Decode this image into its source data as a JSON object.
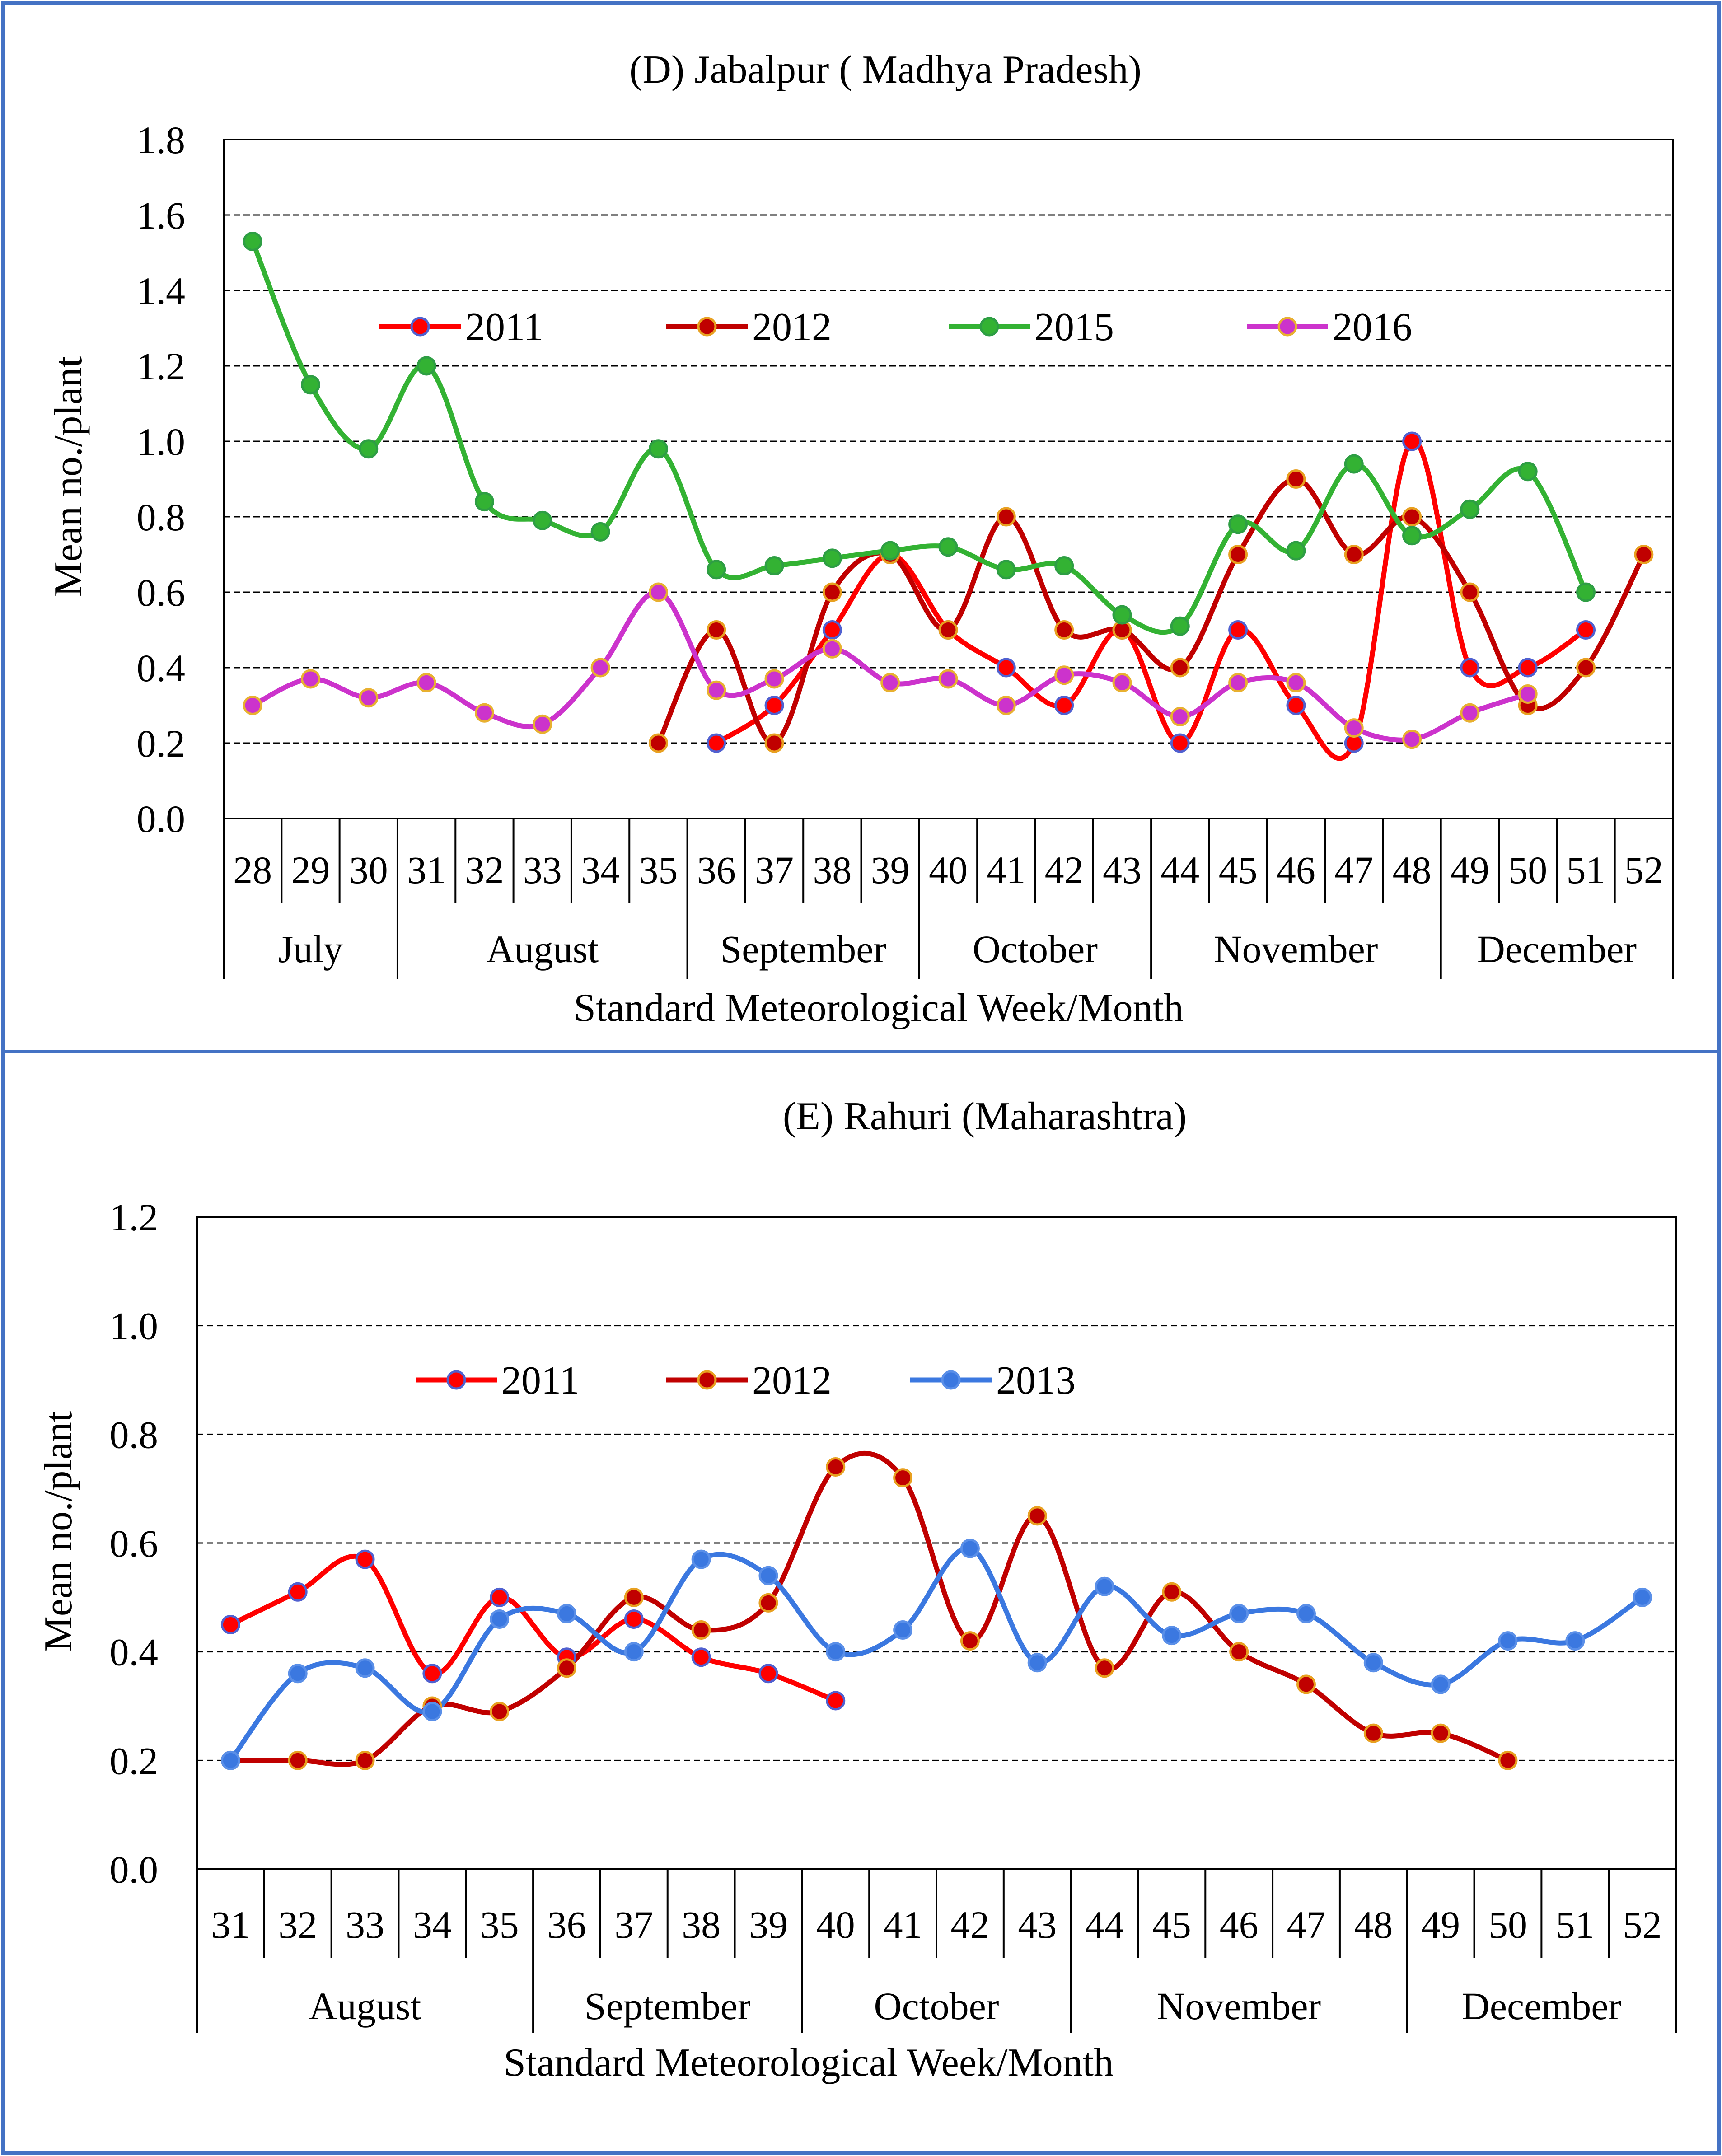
{
  "colors": {
    "frame": "#4472C4",
    "s2011": "#FF0000",
    "s2012": "#C00000",
    "s2015": "#33B233",
    "s2016": "#CC33CC",
    "s2013": "#3B78E0",
    "marker_edge_2011": "#5060D0",
    "marker_edge_2012": "#E8A020",
    "marker_edge_2015": "#2E9E44",
    "marker_edge_2016": "#E8B030",
    "marker_edge_2013": "#5A8FE8"
  },
  "chart_data": [
    {
      "type": "line",
      "title": "(D) Jabalpur ( Madhya Pradesh)",
      "xlabel": "Standard Meteorological Week/Month",
      "ylabel": "Mean no./plant",
      "ylim": [
        0,
        1.8
      ],
      "yticks": [
        "0.0",
        "0.2",
        "0.4",
        "0.6",
        "0.8",
        "1.0",
        "1.2",
        "1.4",
        "1.6",
        "1.8"
      ],
      "grid": true,
      "smooth": true,
      "legend_position": "top-center",
      "x": [
        28,
        29,
        30,
        31,
        32,
        33,
        34,
        35,
        36,
        37,
        38,
        39,
        40,
        41,
        42,
        43,
        44,
        45,
        46,
        47,
        48,
        49,
        50,
        51,
        52
      ],
      "week_labels": [
        "28",
        "29",
        "30",
        "31",
        "32",
        "33",
        "34",
        "35",
        "36",
        "37",
        "38",
        "39",
        "40",
        "41",
        "42",
        "43",
        "44",
        "45",
        "46",
        "47",
        "48",
        "49",
        "50",
        "51",
        "52"
      ],
      "months": [
        {
          "name": "July",
          "start": 28,
          "end": 30
        },
        {
          "name": "August",
          "start": 31,
          "end": 35
        },
        {
          "name": "September",
          "start": 36,
          "end": 39
        },
        {
          "name": "October",
          "start": 40,
          "end": 43
        },
        {
          "name": "November",
          "start": 44,
          "end": 48
        },
        {
          "name": "December",
          "start": 49,
          "end": 52
        }
      ],
      "series": [
        {
          "name": "2011",
          "color_key": "s2011",
          "edge_key": "marker_edge_2011",
          "points": [
            [
              36,
              0.2
            ],
            [
              37,
              0.3
            ],
            [
              38,
              0.5
            ],
            [
              39,
              0.7
            ],
            [
              40,
              0.5
            ],
            [
              41,
              0.4
            ],
            [
              42,
              0.3
            ],
            [
              43,
              0.5
            ],
            [
              44,
              0.2
            ],
            [
              45,
              0.5
            ],
            [
              46,
              0.3
            ],
            [
              47,
              0.2
            ],
            [
              48,
              1.0
            ],
            [
              49,
              0.4
            ],
            [
              50,
              0.4
            ],
            [
              51,
              0.5
            ]
          ]
        },
        {
          "name": "2012",
          "color_key": "s2012",
          "edge_key": "marker_edge_2012",
          "points": [
            [
              35,
              0.2
            ],
            [
              36,
              0.5
            ],
            [
              37,
              0.2
            ],
            [
              38,
              0.6
            ],
            [
              39,
              0.7
            ],
            [
              40,
              0.5
            ],
            [
              41,
              0.8
            ],
            [
              42,
              0.5
            ],
            [
              43,
              0.5
            ],
            [
              44,
              0.4
            ],
            [
              45,
              0.7
            ],
            [
              46,
              0.9
            ],
            [
              47,
              0.7
            ],
            [
              48,
              0.8
            ],
            [
              49,
              0.6
            ],
            [
              50,
              0.3
            ],
            [
              51,
              0.4
            ],
            [
              52,
              0.7
            ]
          ]
        },
        {
          "name": "2015",
          "color_key": "s2015",
          "edge_key": "marker_edge_2015",
          "points": [
            [
              28,
              1.53
            ],
            [
              29,
              1.15
            ],
            [
              30,
              0.98
            ],
            [
              31,
              1.2
            ],
            [
              32,
              0.84
            ],
            [
              33,
              0.79
            ],
            [
              34,
              0.76
            ],
            [
              35,
              0.98
            ],
            [
              36,
              0.66
            ],
            [
              37,
              0.67
            ],
            [
              38,
              0.69
            ],
            [
              39,
              0.71
            ],
            [
              40,
              0.72
            ],
            [
              41,
              0.66
            ],
            [
              42,
              0.67
            ],
            [
              43,
              0.54
            ],
            [
              44,
              0.51
            ],
            [
              45,
              0.78
            ],
            [
              46,
              0.71
            ],
            [
              47,
              0.94
            ],
            [
              48,
              0.75
            ],
            [
              49,
              0.82
            ],
            [
              50,
              0.92
            ],
            [
              51,
              0.6
            ]
          ]
        },
        {
          "name": "2016",
          "color_key": "s2016",
          "edge_key": "marker_edge_2016",
          "points": [
            [
              28,
              0.3
            ],
            [
              29,
              0.37
            ],
            [
              30,
              0.32
            ],
            [
              31,
              0.36
            ],
            [
              32,
              0.28
            ],
            [
              33,
              0.25
            ],
            [
              34,
              0.4
            ],
            [
              35,
              0.6
            ],
            [
              36,
              0.34
            ],
            [
              37,
              0.37
            ],
            [
              38,
              0.45
            ],
            [
              39,
              0.36
            ],
            [
              40,
              0.37
            ],
            [
              41,
              0.3
            ],
            [
              42,
              0.38
            ],
            [
              43,
              0.36
            ],
            [
              44,
              0.27
            ],
            [
              45,
              0.36
            ],
            [
              46,
              0.36
            ],
            [
              47,
              0.24
            ],
            [
              48,
              0.21
            ],
            [
              49,
              0.28
            ],
            [
              50,
              0.33
            ]
          ]
        }
      ]
    },
    {
      "type": "line",
      "title": "(E) Rahuri (Maharashtra)",
      "xlabel": "Standard Meteorological Week/Month",
      "ylabel": "Mean no./plant",
      "ylim": [
        0,
        1.2
      ],
      "yticks": [
        "0.0",
        "0.2",
        "0.4",
        "0.6",
        "0.8",
        "1.0",
        "1.2"
      ],
      "grid": true,
      "smooth": true,
      "legend_position": "top-center",
      "x": [
        31,
        32,
        33,
        34,
        35,
        36,
        37,
        38,
        39,
        40,
        41,
        42,
        43,
        44,
        45,
        46,
        47,
        48,
        49,
        50,
        51,
        52
      ],
      "week_labels": [
        "31",
        "32",
        "33",
        "34",
        "35",
        "36",
        "37",
        "38",
        "39",
        "40",
        "41",
        "42",
        "43",
        "44",
        "45",
        "46",
        "47",
        "48",
        "49",
        "50",
        "51",
        "52"
      ],
      "months": [
        {
          "name": "August",
          "start": 31,
          "end": 35
        },
        {
          "name": "September",
          "start": 36,
          "end": 39
        },
        {
          "name": "October",
          "start": 40,
          "end": 43
        },
        {
          "name": "November",
          "start": 44,
          "end": 48
        },
        {
          "name": "December",
          "start": 49,
          "end": 52
        }
      ],
      "series": [
        {
          "name": "2011",
          "color_key": "s2011",
          "edge_key": "marker_edge_2011",
          "points": [
            [
              31,
              0.45
            ],
            [
              32,
              0.51
            ],
            [
              33,
              0.57
            ],
            [
              34,
              0.36
            ],
            [
              35,
              0.5
            ],
            [
              36,
              0.39
            ],
            [
              37,
              0.46
            ],
            [
              38,
              0.39
            ],
            [
              39,
              0.36
            ],
            [
              40,
              0.31
            ]
          ]
        },
        {
          "name": "2012",
          "color_key": "s2012",
          "edge_key": "marker_edge_2012",
          "points": [
            [
              31,
              0.2
            ],
            [
              32,
              0.2
            ],
            [
              33,
              0.2
            ],
            [
              34,
              0.3
            ],
            [
              35,
              0.29
            ],
            [
              36,
              0.37
            ],
            [
              37,
              0.5
            ],
            [
              38,
              0.44
            ],
            [
              39,
              0.49
            ],
            [
              40,
              0.74
            ],
            [
              41,
              0.72
            ],
            [
              42,
              0.42
            ],
            [
              43,
              0.65
            ],
            [
              44,
              0.37
            ],
            [
              45,
              0.51
            ],
            [
              46,
              0.4
            ],
            [
              47,
              0.34
            ],
            [
              48,
              0.25
            ],
            [
              49,
              0.25
            ],
            [
              50,
              0.2
            ]
          ]
        },
        {
          "name": "2013",
          "color_key": "s2013",
          "edge_key": "marker_edge_2013",
          "points": [
            [
              31,
              0.2
            ],
            [
              32,
              0.36
            ],
            [
              33,
              0.37
            ],
            [
              34,
              0.29
            ],
            [
              35,
              0.46
            ],
            [
              36,
              0.47
            ],
            [
              37,
              0.4
            ],
            [
              38,
              0.57
            ],
            [
              39,
              0.54
            ],
            [
              40,
              0.4
            ],
            [
              41,
              0.44
            ],
            [
              42,
              0.59
            ],
            [
              43,
              0.38
            ],
            [
              44,
              0.52
            ],
            [
              45,
              0.43
            ],
            [
              46,
              0.47
            ],
            [
              47,
              0.47
            ],
            [
              48,
              0.38
            ],
            [
              49,
              0.34
            ],
            [
              50,
              0.42
            ],
            [
              51,
              0.42
            ],
            [
              52,
              0.5
            ]
          ]
        }
      ]
    }
  ]
}
